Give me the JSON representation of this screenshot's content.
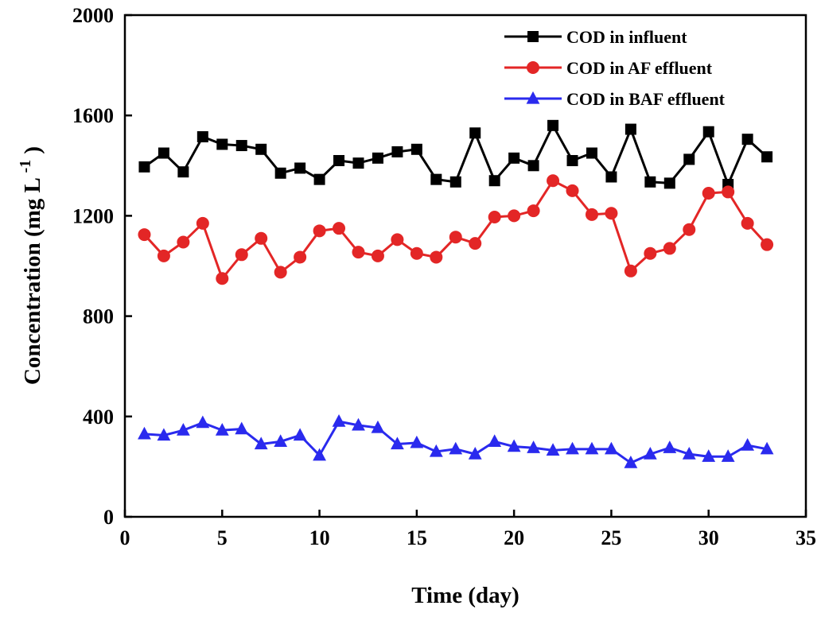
{
  "chart_data": {
    "type": "line",
    "xlabel": "Time (day)",
    "ylabel_main": "Concentration (mg L",
    "ylabel_sup": "-1",
    "ylabel_close": ")",
    "xlim": [
      0,
      35
    ],
    "ylim": [
      0,
      2000
    ],
    "xticks": [
      0,
      5,
      10,
      15,
      20,
      25,
      30,
      35
    ],
    "yticks": [
      0,
      400,
      800,
      1200,
      1600,
      2000
    ],
    "grid": false,
    "legend_position": "top-right",
    "x": [
      1,
      2,
      3,
      4,
      5,
      6,
      7,
      8,
      9,
      10,
      11,
      12,
      13,
      14,
      15,
      16,
      17,
      18,
      19,
      20,
      21,
      22,
      23,
      24,
      25,
      26,
      27,
      28,
      29,
      30,
      31,
      32,
      33
    ],
    "series": [
      {
        "name": "COD in influent",
        "color": "#000000",
        "marker": "square",
        "values": [
          1395,
          1450,
          1375,
          1515,
          1485,
          1480,
          1465,
          1370,
          1390,
          1345,
          1420,
          1410,
          1430,
          1455,
          1465,
          1345,
          1335,
          1530,
          1340,
          1430,
          1400,
          1560,
          1420,
          1450,
          1355,
          1545,
          1335,
          1330,
          1425,
          1535,
          1325,
          1505,
          1435
        ]
      },
      {
        "name": "COD in AF effluent",
        "color": "#e32626",
        "marker": "circle",
        "values": [
          1125,
          1040,
          1095,
          1170,
          950,
          1045,
          1110,
          975,
          1035,
          1140,
          1150,
          1055,
          1040,
          1105,
          1050,
          1035,
          1115,
          1090,
          1195,
          1200,
          1220,
          1340,
          1300,
          1205,
          1210,
          980,
          1050,
          1070,
          1145,
          1290,
          1295,
          1170,
          1085
        ]
      },
      {
        "name": "COD in BAF effluent",
        "color": "#2a2aee",
        "marker": "triangle",
        "values": [
          330,
          325,
          345,
          375,
          345,
          350,
          290,
          300,
          325,
          245,
          380,
          365,
          355,
          290,
          295,
          260,
          270,
          250,
          300,
          280,
          275,
          265,
          270,
          270,
          270,
          215,
          250,
          275,
          250,
          240,
          240,
          285,
          270
        ]
      }
    ]
  }
}
